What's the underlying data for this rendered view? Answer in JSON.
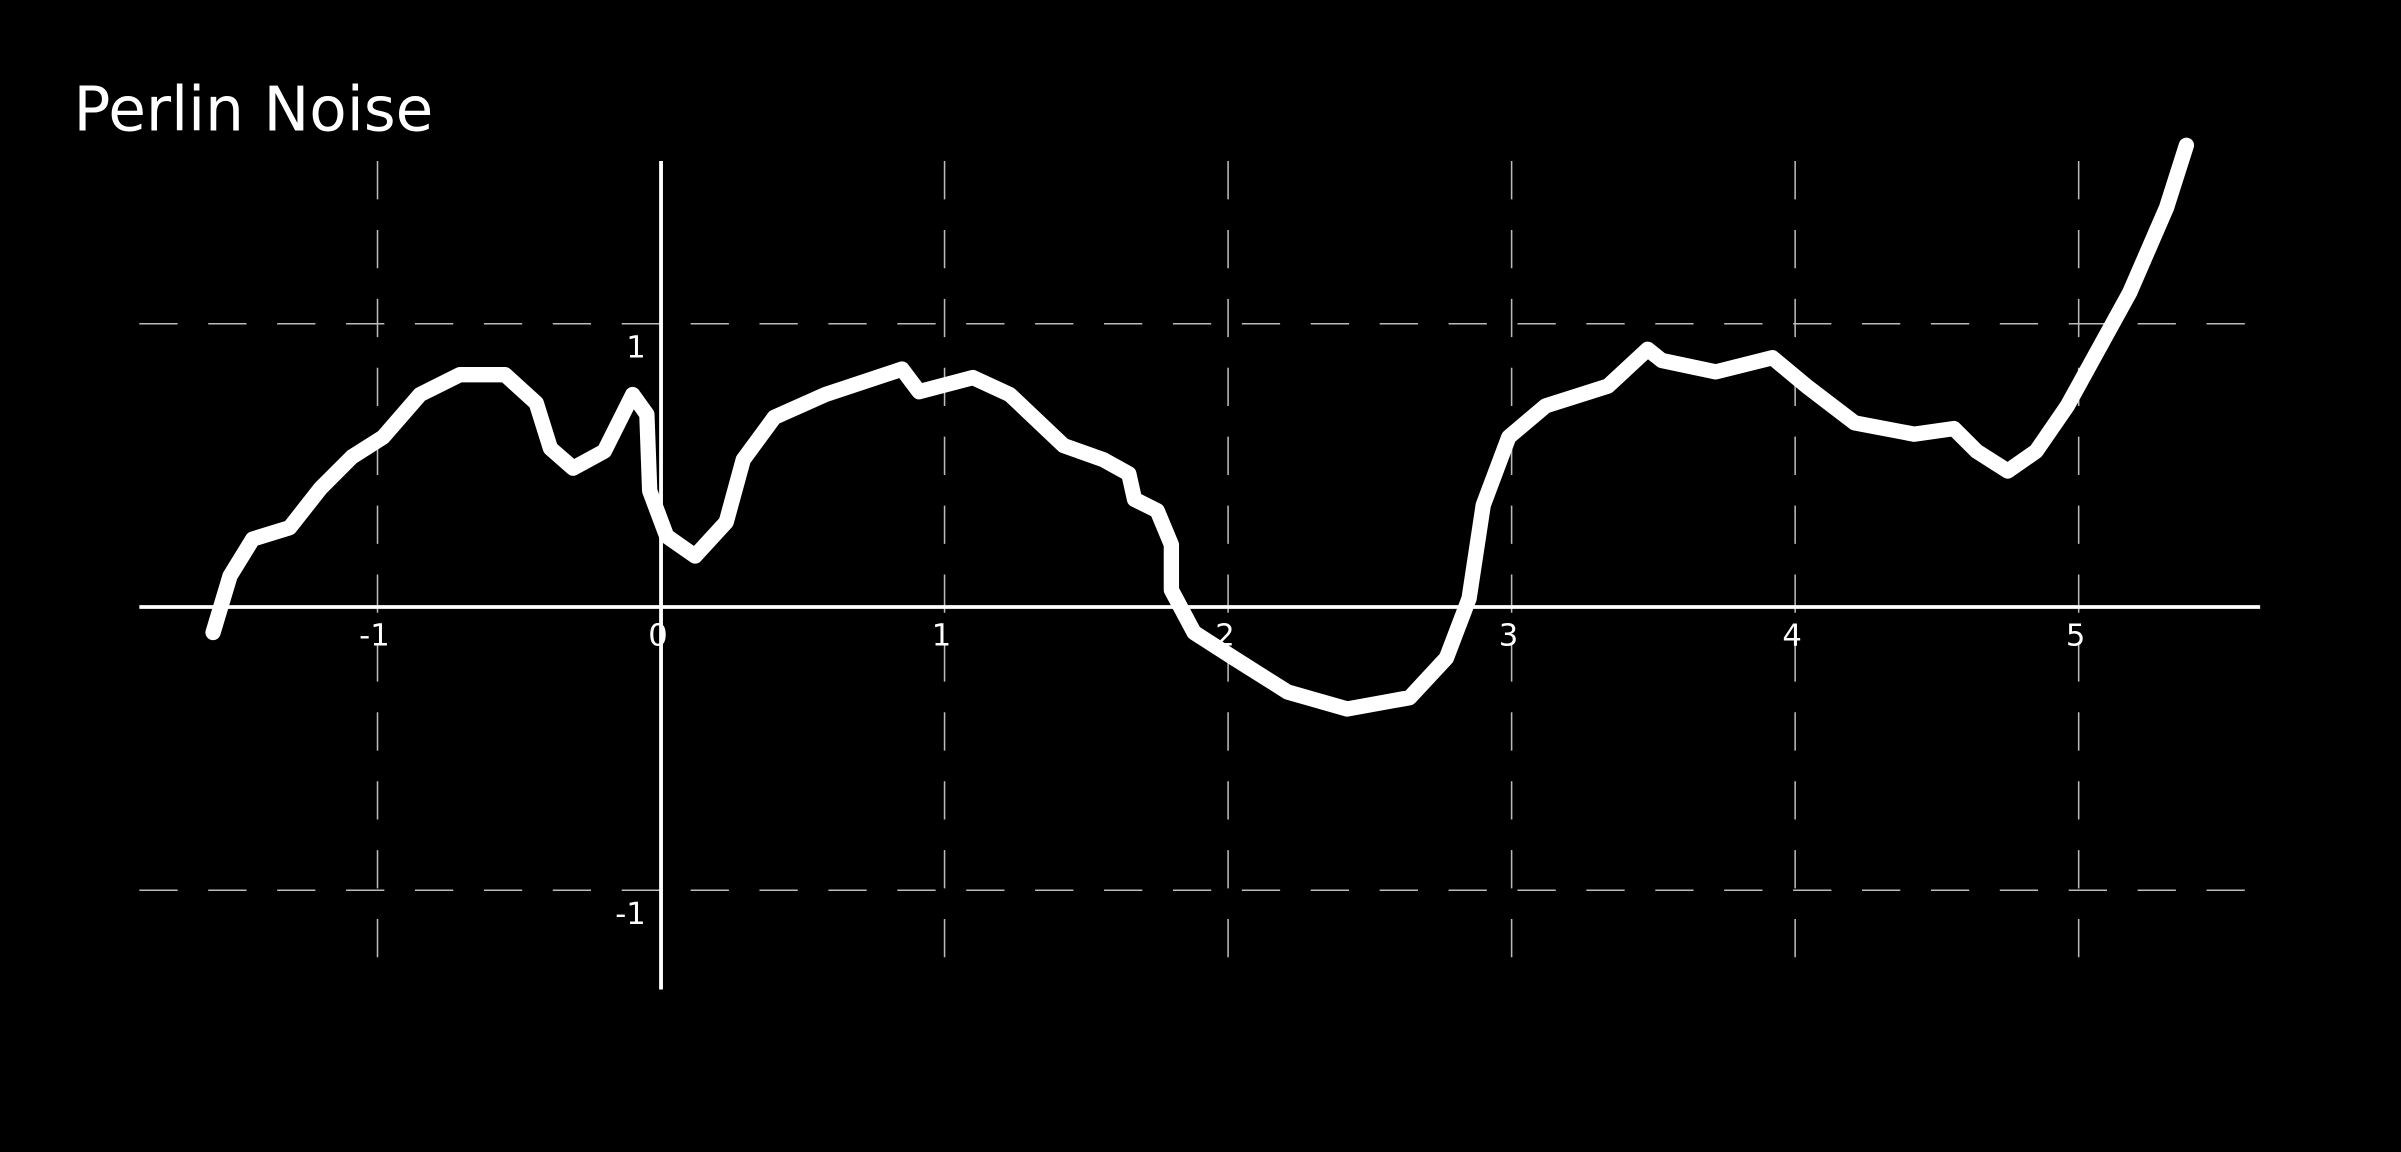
{
  "chart_data": {
    "type": "line",
    "title": "Perlin Noise",
    "color": "#ffffff",
    "grid": true,
    "xlim": [
      -1.84,
      5.64
    ],
    "ylim": [
      -1.35,
      1.65
    ],
    "xticks": [
      -1,
      0,
      1,
      2,
      3,
      4,
      5
    ],
    "yticks": [
      -1,
      1
    ],
    "x": [
      -1.58,
      -1.52,
      -1.44,
      -1.31,
      -1.2,
      -1.09,
      -0.98,
      -0.85,
      -0.71,
      -0.55,
      -0.44,
      -0.39,
      -0.31,
      -0.2,
      -0.1,
      -0.05,
      -0.04,
      0.02,
      0.12,
      0.23,
      0.29,
      0.4,
      0.58,
      0.85,
      0.91,
      1.1,
      1.23,
      1.42,
      1.56,
      1.65,
      1.67,
      1.75,
      1.8,
      1.8,
      1.88,
      2.02,
      2.21,
      2.42,
      2.64,
      2.77,
      2.85,
      2.9,
      2.99,
      3.12,
      3.34,
      3.48,
      3.53,
      3.72,
      3.92,
      4.04,
      4.21,
      4.42,
      4.56,
      4.64,
      4.75,
      4.85,
      4.96,
      5.18,
      5.31,
      5.38
    ],
    "values": [
      -0.09,
      0.11,
      0.24,
      0.28,
      0.42,
      0.53,
      0.6,
      0.75,
      0.82,
      0.82,
      0.72,
      0.56,
      0.49,
      0.55,
      0.75,
      0.68,
      0.41,
      0.25,
      0.18,
      0.3,
      0.52,
      0.67,
      0.75,
      0.84,
      0.76,
      0.81,
      0.75,
      0.57,
      0.52,
      0.47,
      0.38,
      0.34,
      0.22,
      0.06,
      -0.09,
      -0.18,
      -0.3,
      -0.36,
      -0.32,
      -0.18,
      0.03,
      0.36,
      0.6,
      0.71,
      0.78,
      0.91,
      0.87,
      0.83,
      0.88,
      0.78,
      0.65,
      0.61,
      0.63,
      0.55,
      0.48,
      0.55,
      0.71,
      1.11,
      1.41,
      1.63
    ]
  }
}
